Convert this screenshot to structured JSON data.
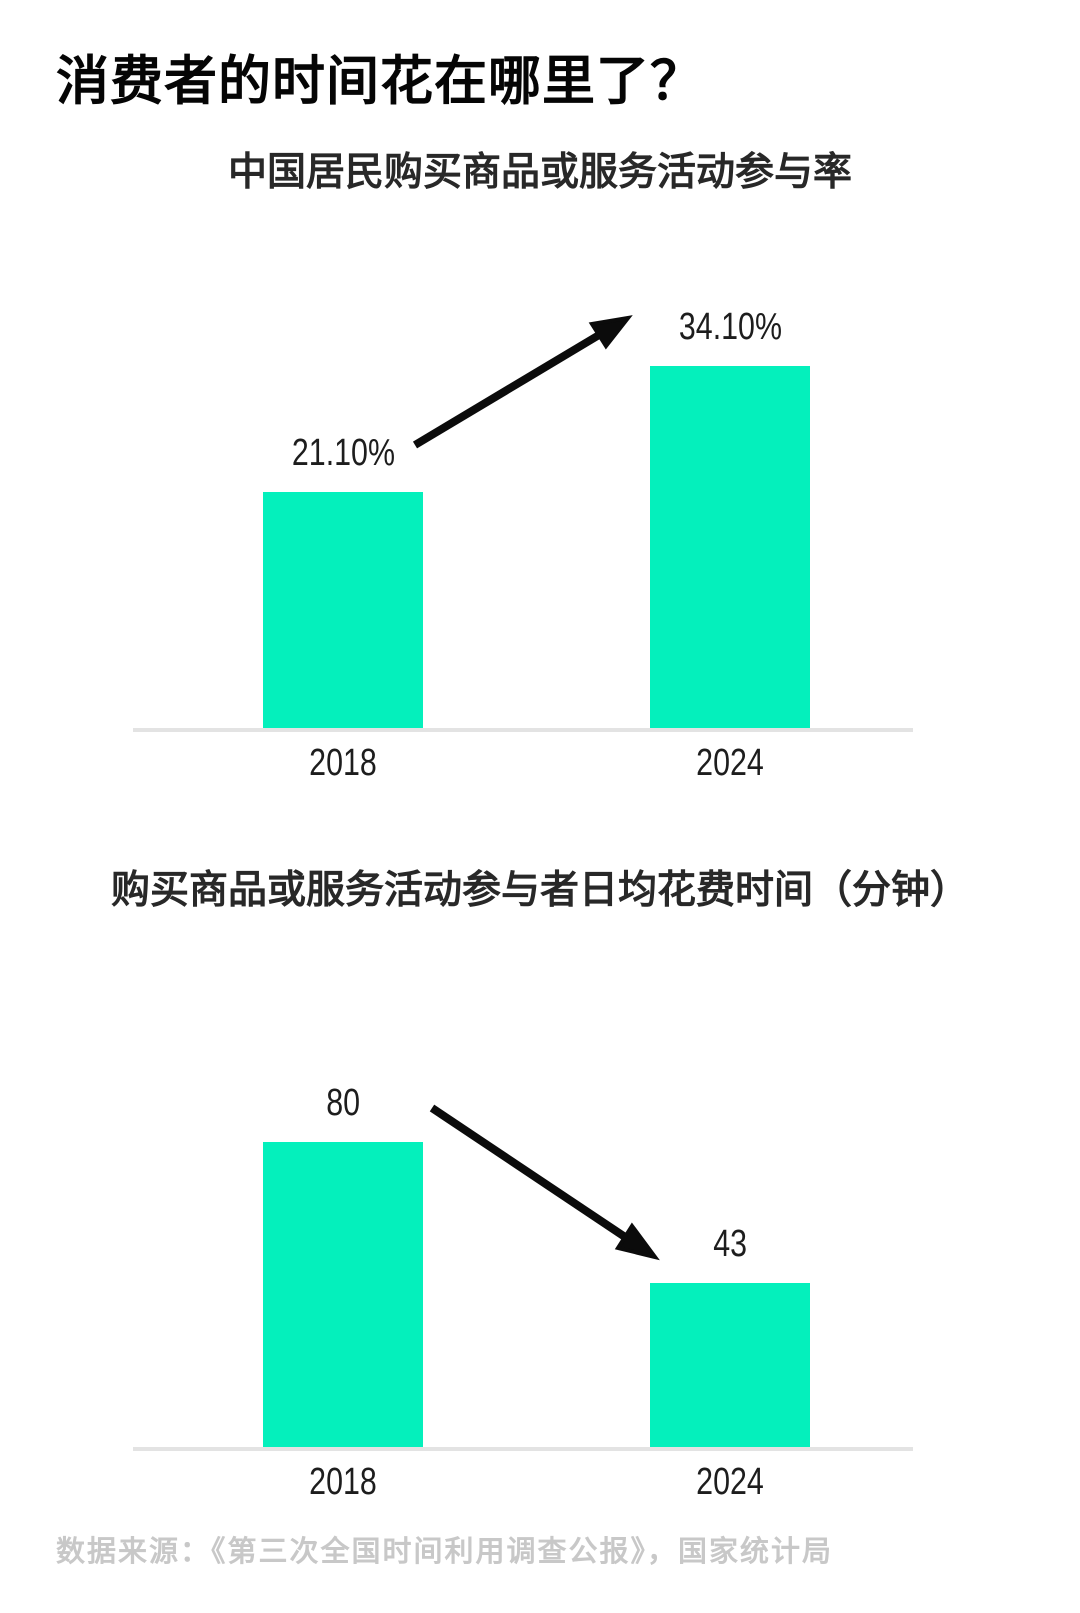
{
  "page": {
    "title": "消费者的时间花在哪里了？",
    "source": "数据来源：《第三次全国时间利用调查公报》，国家统计局"
  },
  "chart_data": [
    {
      "type": "bar",
      "title": "中国居民购买商品或服务活动参与率",
      "categories": [
        "2018",
        "2024"
      ],
      "values": [
        21.1,
        34.1
      ],
      "value_labels": [
        "21.10%",
        "34.10%"
      ],
      "unit": "%",
      "xlabel": "",
      "ylabel": "",
      "ylim": [
        0,
        37.5
      ],
      "grid": false,
      "legend": "none",
      "trend": "up",
      "bar_color": "#04f0bc",
      "axis_color": "#e3e3e3",
      "arrow_color": "#0b0b0b"
    },
    {
      "type": "bar",
      "title": "购买商品或服务活动参与者日均花费时间（分钟）",
      "categories": [
        "2018",
        "2024"
      ],
      "values": [
        80,
        43
      ],
      "value_labels": [
        "80",
        "43"
      ],
      "unit": "分钟",
      "xlabel": "",
      "ylabel": "",
      "ylim": [
        0,
        105
      ],
      "grid": false,
      "legend": "none",
      "trend": "down",
      "bar_color": "#04f0bc",
      "axis_color": "#e3e3e3",
      "arrow_color": "#0b0b0b"
    }
  ]
}
